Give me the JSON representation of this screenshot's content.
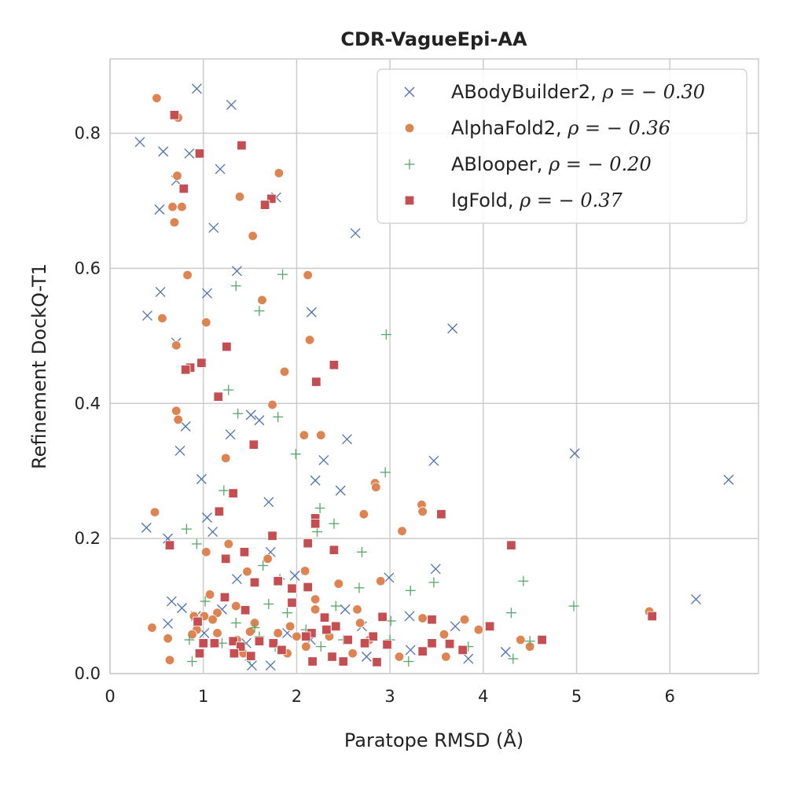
{
  "chart_data": {
    "type": "scatter",
    "title": "CDR-VagueEpi-AA",
    "xlabel": "Paratope RMSD (Å)",
    "ylabel": "Refinement DockQ-T1",
    "xlim": [
      0,
      6.95
    ],
    "ylim": [
      0,
      0.91
    ],
    "xticks": [
      0,
      1,
      2,
      3,
      4,
      5,
      6
    ],
    "yticks": [
      0.0,
      0.2,
      0.4,
      0.6,
      0.8
    ],
    "xtick_labels": [
      "0",
      "1",
      "2",
      "3",
      "4",
      "5",
      "6"
    ],
    "ytick_labels": [
      "0.0",
      "0.2",
      "0.4",
      "0.6",
      "0.8"
    ],
    "grid": true,
    "legend_position": "top-right",
    "series": [
      {
        "name": "ABodyBuilder2",
        "rho_label": "ρ = − 0.30",
        "marker": "x",
        "color": "#4c72b0",
        "points": [
          [
            0.93,
            0.866
          ],
          [
            1.3,
            0.842
          ],
          [
            0.32,
            0.787
          ],
          [
            0.57,
            0.773
          ],
          [
            0.85,
            0.77
          ],
          [
            1.18,
            0.747
          ],
          [
            0.71,
            0.73
          ],
          [
            0.53,
            0.687
          ],
          [
            1.11,
            0.66
          ],
          [
            2.63,
            0.652
          ],
          [
            1.78,
            0.705
          ],
          [
            1.36,
            0.596
          ],
          [
            0.54,
            0.565
          ],
          [
            1.04,
            0.563
          ],
          [
            0.4,
            0.53
          ],
          [
            2.16,
            0.535
          ],
          [
            3.67,
            0.511
          ],
          [
            0.71,
            0.49
          ],
          [
            1.51,
            0.383
          ],
          [
            1.6,
            0.375
          ],
          [
            0.81,
            0.366
          ],
          [
            1.29,
            0.354
          ],
          [
            2.54,
            0.347
          ],
          [
            0.75,
            0.33
          ],
          [
            3.47,
            0.315
          ],
          [
            2.29,
            0.316
          ],
          [
            4.98,
            0.326
          ],
          [
            6.63,
            0.287
          ],
          [
            0.98,
            0.288
          ],
          [
            2.2,
            0.286
          ],
          [
            2.47,
            0.271
          ],
          [
            1.7,
            0.254
          ],
          [
            1.04,
            0.231
          ],
          [
            0.39,
            0.216
          ],
          [
            1.1,
            0.21
          ],
          [
            0.62,
            0.2
          ],
          [
            1.72,
            0.18
          ],
          [
            3.49,
            0.155
          ],
          [
            2.99,
            0.142
          ],
          [
            1.36,
            0.14
          ],
          [
            1.98,
            0.145
          ],
          [
            0.66,
            0.107
          ],
          [
            6.28,
            0.11
          ],
          [
            0.77,
            0.097
          ],
          [
            2.52,
            0.095
          ],
          [
            0.62,
            0.074
          ],
          [
            1.01,
            0.06
          ],
          [
            1.9,
            0.06
          ],
          [
            1.52,
            0.012
          ],
          [
            1.72,
            0.012
          ],
          [
            3.22,
            0.035
          ],
          [
            3.84,
            0.022
          ],
          [
            4.24,
            0.032
          ],
          [
            2.75,
            0.025
          ],
          [
            3.21,
            0.085
          ],
          [
            3.7,
            0.07
          ],
          [
            1.2,
            0.095
          ],
          [
            2.15,
            0.05
          ],
          [
            1.46,
            0.045
          ],
          [
            0.92,
            0.085
          ],
          [
            2.7,
            0.07
          ]
        ]
      },
      {
        "name": "AlphaFold2",
        "rho_label": "ρ = − 0.36",
        "marker": "o",
        "color": "#dd8452",
        "points": [
          [
            0.5,
            0.852
          ],
          [
            0.73,
            0.823
          ],
          [
            0.72,
            0.737
          ],
          [
            1.81,
            0.741
          ],
          [
            0.67,
            0.691
          ],
          [
            0.77,
            0.691
          ],
          [
            1.39,
            0.706
          ],
          [
            0.69,
            0.668
          ],
          [
            1.53,
            0.648
          ],
          [
            0.83,
            0.59
          ],
          [
            2.12,
            0.59
          ],
          [
            0.56,
            0.526
          ],
          [
            1.03,
            0.52
          ],
          [
            1.63,
            0.553
          ],
          [
            0.71,
            0.486
          ],
          [
            2.14,
            0.494
          ],
          [
            1.87,
            0.447
          ],
          [
            1.74,
            0.398
          ],
          [
            0.71,
            0.389
          ],
          [
            0.73,
            0.376
          ],
          [
            2.08,
            0.353
          ],
          [
            2.26,
            0.353
          ],
          [
            1.24,
            0.319
          ],
          [
            2.84,
            0.282
          ],
          [
            2.85,
            0.276
          ],
          [
            3.34,
            0.25
          ],
          [
            3.35,
            0.24
          ],
          [
            0.48,
            0.239
          ],
          [
            2.72,
            0.236
          ],
          [
            3.13,
            0.211
          ],
          [
            1.27,
            0.192
          ],
          [
            1.03,
            0.18
          ],
          [
            1.69,
            0.17
          ],
          [
            2.09,
            0.152
          ],
          [
            1.47,
            0.151
          ],
          [
            2.45,
            0.133
          ],
          [
            2.9,
            0.137
          ],
          [
            1.07,
            0.117
          ],
          [
            2.2,
            0.11
          ],
          [
            1.35,
            0.1
          ],
          [
            2.2,
            0.095
          ],
          [
            2.65,
            0.095
          ],
          [
            5.78,
            0.092
          ],
          [
            1.15,
            0.09
          ],
          [
            0.9,
            0.085
          ],
          [
            1.01,
            0.085
          ],
          [
            1.1,
            0.08
          ],
          [
            3.8,
            0.08
          ],
          [
            3.35,
            0.082
          ],
          [
            1.55,
            0.075
          ],
          [
            2.68,
            0.075
          ],
          [
            1.93,
            0.07
          ],
          [
            0.93,
            0.065
          ],
          [
            3.95,
            0.065
          ],
          [
            1.15,
            0.06
          ],
          [
            1.5,
            0.062
          ],
          [
            1.8,
            0.06
          ],
          [
            3.58,
            0.058
          ],
          [
            0.88,
            0.058
          ],
          [
            2.0,
            0.055
          ],
          [
            2.35,
            0.055
          ],
          [
            0.62,
            0.052
          ],
          [
            1.36,
            0.05
          ],
          [
            2.78,
            0.05
          ],
          [
            4.4,
            0.05
          ],
          [
            4.5,
            0.04
          ],
          [
            2.1,
            0.04
          ],
          [
            3.1,
            0.025
          ],
          [
            3.6,
            0.025
          ],
          [
            0.64,
            0.02
          ],
          [
            1.43,
            0.03
          ],
          [
            1.9,
            0.03
          ],
          [
            2.6,
            0.03
          ],
          [
            0.45,
            0.068
          ]
        ]
      },
      {
        "name": "ABlooper",
        "rho_label": "ρ = − 0.20",
        "marker": "+",
        "color": "#55a868",
        "points": [
          [
            1.85,
            0.591
          ],
          [
            1.35,
            0.574
          ],
          [
            2.96,
            0.502
          ],
          [
            1.6,
            0.537
          ],
          [
            1.27,
            0.42
          ],
          [
            1.37,
            0.385
          ],
          [
            1.8,
            0.38
          ],
          [
            1.99,
            0.325
          ],
          [
            2.95,
            0.298
          ],
          [
            1.22,
            0.271
          ],
          [
            2.25,
            0.245
          ],
          [
            2.4,
            0.222
          ],
          [
            2.22,
            0.21
          ],
          [
            0.82,
            0.214
          ],
          [
            2.7,
            0.18
          ],
          [
            0.93,
            0.192
          ],
          [
            1.64,
            0.16
          ],
          [
            1.82,
            0.14
          ],
          [
            3.47,
            0.135
          ],
          [
            4.43,
            0.137
          ],
          [
            2.67,
            0.127
          ],
          [
            1.02,
            0.107
          ],
          [
            3.22,
            0.123
          ],
          [
            1.7,
            0.103
          ],
          [
            4.97,
            0.1
          ],
          [
            2.42,
            0.1
          ],
          [
            1.9,
            0.09
          ],
          [
            4.3,
            0.09
          ],
          [
            1.35,
            0.075
          ],
          [
            3.01,
            0.078
          ],
          [
            2.4,
            0.07
          ],
          [
            1.55,
            0.068
          ],
          [
            2.1,
            0.065
          ],
          [
            1.6,
            0.055
          ],
          [
            2.5,
            0.05
          ],
          [
            3.0,
            0.05
          ],
          [
            1.2,
            0.045
          ],
          [
            0.85,
            0.05
          ],
          [
            2.26,
            0.04
          ],
          [
            3.84,
            0.04
          ],
          [
            1.77,
            0.04
          ],
          [
            4.5,
            0.048
          ],
          [
            0.88,
            0.018
          ],
          [
            3.2,
            0.018
          ],
          [
            4.32,
            0.022
          ],
          [
            1.5,
            0.02
          ]
        ]
      },
      {
        "name": "IgFold",
        "rho_label": "ρ = − 0.37",
        "marker": "s",
        "color": "#c44e52",
        "points": [
          [
            0.69,
            0.827
          ],
          [
            1.41,
            0.782
          ],
          [
            0.96,
            0.77
          ],
          [
            0.79,
            0.718
          ],
          [
            1.73,
            0.703
          ],
          [
            1.66,
            0.694
          ],
          [
            1.25,
            0.484
          ],
          [
            2.4,
            0.457
          ],
          [
            0.98,
            0.46
          ],
          [
            0.86,
            0.453
          ],
          [
            0.81,
            0.45
          ],
          [
            2.21,
            0.432
          ],
          [
            1.16,
            0.41
          ],
          [
            1.54,
            0.339
          ],
          [
            1.32,
            0.267
          ],
          [
            3.55,
            0.236
          ],
          [
            2.2,
            0.23
          ],
          [
            1.17,
            0.24
          ],
          [
            2.2,
            0.222
          ],
          [
            1.74,
            0.204
          ],
          [
            4.3,
            0.19
          ],
          [
            0.64,
            0.19
          ],
          [
            2.12,
            0.193
          ],
          [
            2.4,
            0.183
          ],
          [
            1.44,
            0.18
          ],
          [
            1.24,
            0.17
          ],
          [
            1.8,
            0.137
          ],
          [
            1.55,
            0.135
          ],
          [
            2.12,
            0.128
          ],
          [
            1.95,
            0.126
          ],
          [
            1.23,
            0.113
          ],
          [
            1.95,
            0.105
          ],
          [
            1.45,
            0.094
          ],
          [
            2.92,
            0.084
          ],
          [
            2.3,
            0.083
          ],
          [
            3.45,
            0.08
          ],
          [
            4.07,
            0.07
          ],
          [
            2.42,
            0.07
          ],
          [
            2.32,
            0.065
          ],
          [
            2.16,
            0.06
          ],
          [
            0.94,
            0.077
          ],
          [
            2.82,
            0.055
          ],
          [
            2.1,
            0.055
          ],
          [
            3.45,
            0.045
          ],
          [
            1.6,
            0.048
          ],
          [
            1.75,
            0.045
          ],
          [
            2.55,
            0.05
          ],
          [
            4.63,
            0.05
          ],
          [
            1.32,
            0.048
          ],
          [
            1.12,
            0.045
          ],
          [
            1.0,
            0.045
          ],
          [
            2.73,
            0.045
          ],
          [
            2.97,
            0.043
          ],
          [
            3.64,
            0.044
          ],
          [
            1.84,
            0.035
          ],
          [
            1.4,
            0.04
          ],
          [
            1.33,
            0.03
          ],
          [
            0.96,
            0.03
          ],
          [
            1.51,
            0.026
          ],
          [
            3.35,
            0.033
          ],
          [
            3.78,
            0.035
          ],
          [
            2.38,
            0.025
          ],
          [
            2.17,
            0.018
          ],
          [
            2.5,
            0.018
          ],
          [
            2.86,
            0.017
          ],
          [
            5.81,
            0.085
          ]
        ]
      }
    ]
  }
}
